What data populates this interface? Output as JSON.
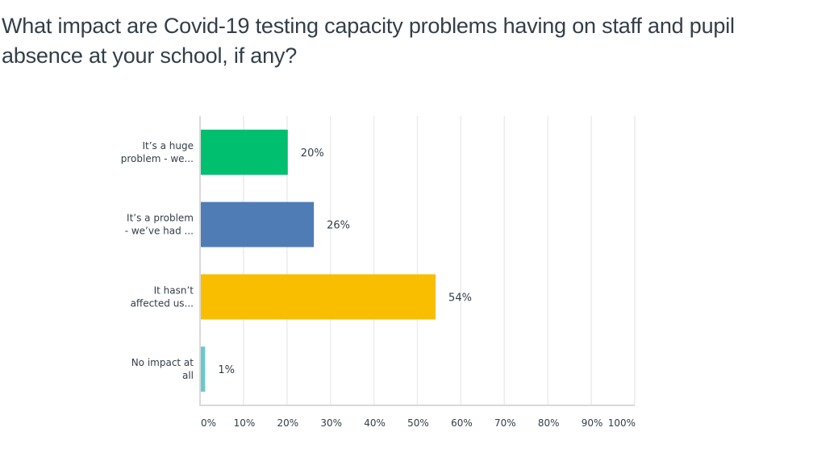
{
  "question": {
    "title": "What impact are Covid-19 testing capacity problems having on staff and pupil absence at your school, if any?"
  },
  "chart_data": {
    "type": "bar",
    "orientation": "horizontal",
    "title": "What impact are Covid-19 testing capacity problems having on staff and pupil absence at your school, if any?",
    "xlabel": "",
    "ylabel": "",
    "categories": [
      [
        "It’s a huge",
        "problem - we..."
      ],
      [
        "It’s a problem",
        "- we’ve had ..."
      ],
      [
        "It hasn’t",
        "affected us..."
      ],
      [
        "No impact at",
        "all"
      ]
    ],
    "values": [
      20,
      26,
      54,
      1
    ],
    "value_labels": [
      "20%",
      "26%",
      "54%",
      "1%"
    ],
    "colors": [
      "#00bf6f",
      "#507cb6",
      "#f9be00",
      "#6bc8cd"
    ],
    "xlim": [
      0,
      100
    ],
    "xticks": [
      0,
      10,
      20,
      30,
      40,
      50,
      60,
      70,
      80,
      90,
      100
    ],
    "xtick_labels": [
      "0%",
      "10%",
      "20%",
      "30%",
      "40%",
      "50%",
      "60%",
      "70%",
      "80%",
      "90%",
      "100%"
    ],
    "grid": true,
    "legend": "none"
  }
}
